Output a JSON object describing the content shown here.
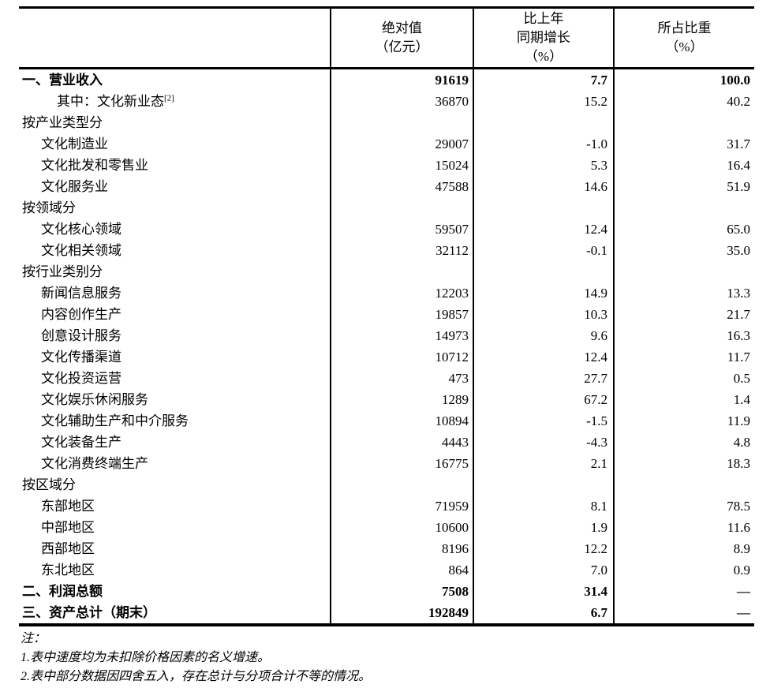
{
  "table": {
    "header": {
      "label_col": "",
      "abs_col": "绝对值\n（亿元）",
      "growth_col": "比上年\n同期增长\n（%）",
      "share_col": "所占比重\n（%）"
    },
    "rows": [
      {
        "label": "一、营业收入",
        "sup": "",
        "indent": 0,
        "bold": true,
        "abs": "91619",
        "growth": "7.7",
        "share": "100.0"
      },
      {
        "label": "其中：文化新业态",
        "sup": "[2]",
        "indent": 2,
        "bold": false,
        "abs": "36870",
        "growth": "15.2",
        "share": "40.2"
      },
      {
        "label": "按产业类型分",
        "sup": "",
        "indent": 0,
        "bold": false,
        "abs": "",
        "growth": "",
        "share": ""
      },
      {
        "label": "文化制造业",
        "sup": "",
        "indent": 1,
        "bold": false,
        "abs": "29007",
        "growth": "-1.0",
        "share": "31.7"
      },
      {
        "label": "文化批发和零售业",
        "sup": "",
        "indent": 1,
        "bold": false,
        "abs": "15024",
        "growth": "5.3",
        "share": "16.4"
      },
      {
        "label": "文化服务业",
        "sup": "",
        "indent": 1,
        "bold": false,
        "abs": "47588",
        "growth": "14.6",
        "share": "51.9"
      },
      {
        "label": "按领域分",
        "sup": "",
        "indent": 0,
        "bold": false,
        "abs": "",
        "growth": "",
        "share": ""
      },
      {
        "label": "文化核心领域",
        "sup": "",
        "indent": 1,
        "bold": false,
        "abs": "59507",
        "growth": "12.4",
        "share": "65.0"
      },
      {
        "label": "文化相关领域",
        "sup": "",
        "indent": 1,
        "bold": false,
        "abs": "32112",
        "growth": "-0.1",
        "share": "35.0"
      },
      {
        "label": "按行业类别分",
        "sup": "",
        "indent": 0,
        "bold": false,
        "abs": "",
        "growth": "",
        "share": ""
      },
      {
        "label": "新闻信息服务",
        "sup": "",
        "indent": 1,
        "bold": false,
        "abs": "12203",
        "growth": "14.9",
        "share": "13.3"
      },
      {
        "label": "内容创作生产",
        "sup": "",
        "indent": 1,
        "bold": false,
        "abs": "19857",
        "growth": "10.3",
        "share": "21.7"
      },
      {
        "label": "创意设计服务",
        "sup": "",
        "indent": 1,
        "bold": false,
        "abs": "14973",
        "growth": "9.6",
        "share": "16.3"
      },
      {
        "label": "文化传播渠道",
        "sup": "",
        "indent": 1,
        "bold": false,
        "abs": "10712",
        "growth": "12.4",
        "share": "11.7"
      },
      {
        "label": "文化投资运营",
        "sup": "",
        "indent": 1,
        "bold": false,
        "abs": "473",
        "growth": "27.7",
        "share": "0.5"
      },
      {
        "label": "文化娱乐休闲服务",
        "sup": "",
        "indent": 1,
        "bold": false,
        "abs": "1289",
        "growth": "67.2",
        "share": "1.4"
      },
      {
        "label": "文化辅助生产和中介服务",
        "sup": "",
        "indent": 1,
        "bold": false,
        "abs": "10894",
        "growth": "-1.5",
        "share": "11.9"
      },
      {
        "label": "文化装备生产",
        "sup": "",
        "indent": 1,
        "bold": false,
        "abs": "4443",
        "growth": "-4.3",
        "share": "4.8"
      },
      {
        "label": "文化消费终端生产",
        "sup": "",
        "indent": 1,
        "bold": false,
        "abs": "16775",
        "growth": "2.1",
        "share": "18.3"
      },
      {
        "label": "按区域分",
        "sup": "",
        "indent": 0,
        "bold": false,
        "abs": "",
        "growth": "",
        "share": ""
      },
      {
        "label": "东部地区",
        "sup": "",
        "indent": 1,
        "bold": false,
        "abs": "71959",
        "growth": "8.1",
        "share": "78.5"
      },
      {
        "label": "中部地区",
        "sup": "",
        "indent": 1,
        "bold": false,
        "abs": "10600",
        "growth": "1.9",
        "share": "11.6"
      },
      {
        "label": "西部地区",
        "sup": "",
        "indent": 1,
        "bold": false,
        "abs": "8196",
        "growth": "12.2",
        "share": "8.9"
      },
      {
        "label": "东北地区",
        "sup": "",
        "indent": 1,
        "bold": false,
        "abs": "864",
        "growth": "7.0",
        "share": "0.9"
      },
      {
        "label": "二、利润总额",
        "sup": "",
        "indent": 0,
        "bold": true,
        "abs": "7508",
        "growth": "31.4",
        "share": "—"
      },
      {
        "label": "三、资产总计（期末）",
        "sup": "",
        "indent": 0,
        "bold": true,
        "abs": "192849",
        "growth": "6.7",
        "share": "—"
      }
    ]
  },
  "notes": {
    "title": "注：",
    "items": [
      "1.表中速度均为未扣除价格因素的名义增速。",
      "2.表中部分数据因四舍五入，存在总计与分项合计不等的情况。"
    ]
  }
}
